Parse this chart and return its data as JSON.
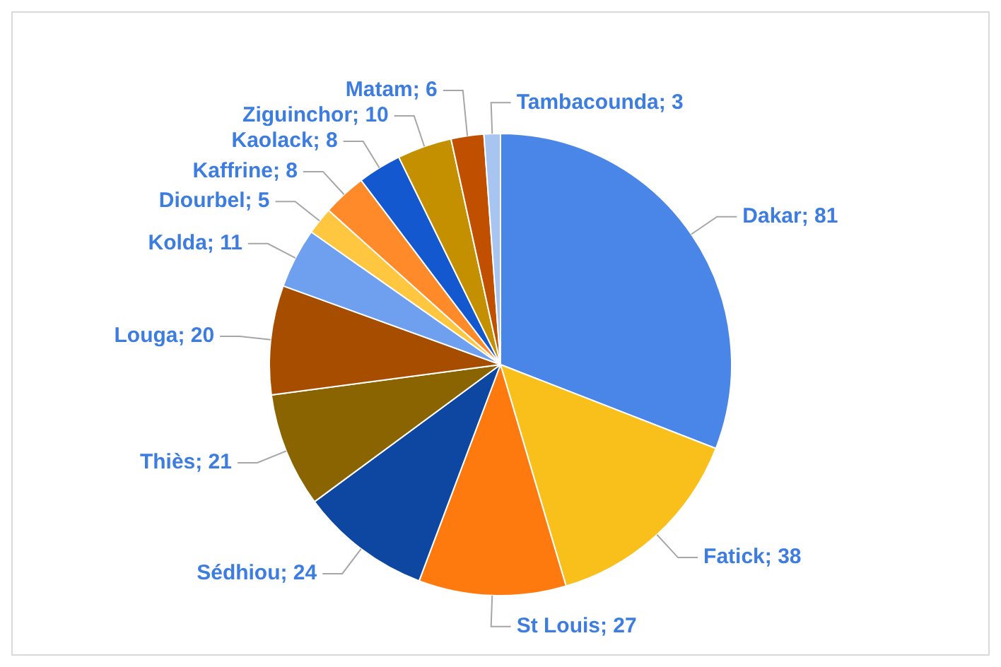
{
  "chart_data": {
    "type": "pie",
    "categories": [
      "Dakar",
      "Fatick",
      "St Louis",
      "Sédhiou",
      "Thiès",
      "Louga",
      "Kolda",
      "Diourbel",
      "Kaffrine",
      "Kaolack",
      "Ziguinchor",
      "Matam",
      "Tambacounda"
    ],
    "values": [
      81,
      38,
      27,
      24,
      21,
      20,
      11,
      5,
      8,
      8,
      10,
      6,
      3
    ],
    "value_labels": [
      "; 81",
      "; 38",
      "; 27",
      "; 24",
      "; 21",
      "; 20",
      "; 11",
      "; 5",
      "; 8",
      "; 8",
      "; 10",
      "; 6",
      "; 3"
    ],
    "colors": [
      "#4a86e8",
      "#f9bf1a",
      "#ff7a0e",
      "#0d47a1",
      "#8a6400",
      "#a64d00",
      "#6fa0ef",
      "#ffc740",
      "#ff8a2a",
      "#1458d0",
      "#c59000",
      "#c05000",
      "#a8c4f0"
    ]
  }
}
